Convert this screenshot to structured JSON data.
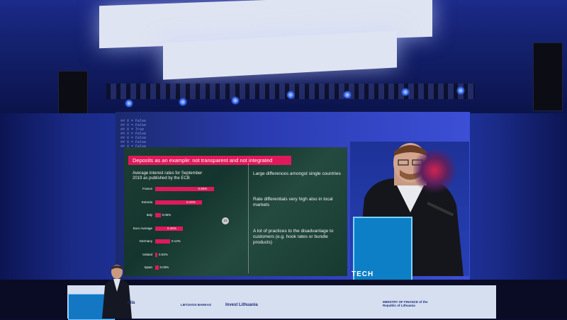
{
  "slide": {
    "title": "Deposits as an example: not transparent and not integrated",
    "chart_heading_line1": "Average interest rates for September",
    "chart_heading_line2": "2019 as published by the ECB",
    "bullets": [
      "Large differences amongst single countries",
      "Rate differentials very high also in local markets",
      "A lot of practices to the disadvantage to customers (e.g. hook rates or bundle products)"
    ],
    "page_number": "23"
  },
  "chart_data": {
    "type": "bar",
    "orientation": "horizontal",
    "categories": [
      "France",
      "Estonia",
      "Italy",
      "Euro Average",
      "Germany",
      "Ireland",
      "Spain"
    ],
    "values": [
      0.55,
      0.44,
      0.05,
      0.26,
      0.14,
      0.02,
      0.03
    ],
    "value_labels": [
      "0.55%",
      "0.44%",
      "0.05%",
      "0.26%",
      "0.14%",
      "0.02%",
      "0.03%"
    ],
    "bar_color": "#e0195a",
    "ylabel": "",
    "xlabel": ""
  },
  "camera_screen": {
    "text": "TECH"
  },
  "banner": {
    "sponsors": [
      "nila",
      "LIETUVOS BANKAS",
      "Invest Lithuania",
      "MINISTRY OF FINANCE of the Republic of Lithuania"
    ]
  },
  "colors": {
    "accent": "#e0195a",
    "hall_blue": "#1c2a8a",
    "lectern_blue": "#0d7fc7"
  }
}
